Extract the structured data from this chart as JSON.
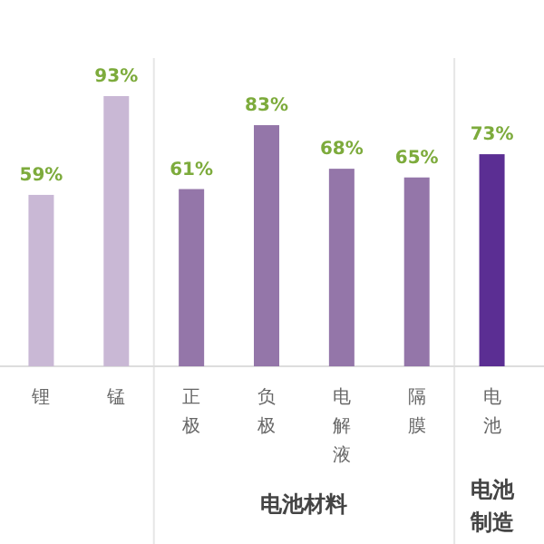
{
  "chart_data": {
    "type": "bar",
    "categories": [
      "锂",
      "锰",
      "正极",
      "负极",
      "电解液",
      "隔膜",
      "电池"
    ],
    "values": [
      59,
      93,
      61,
      83,
      68,
      65,
      73
    ],
    "value_labels": [
      "59%",
      "93%",
      "61%",
      "83%",
      "68%",
      "65%",
      "73%"
    ],
    "colors": [
      "#c9b8d5",
      "#c9b8d5",
      "#9476a9",
      "#9476a9",
      "#9476a9",
      "#9476a9",
      "#5b2e93"
    ],
    "annotations": [
      "电池材料",
      "电池制造"
    ]
  }
}
